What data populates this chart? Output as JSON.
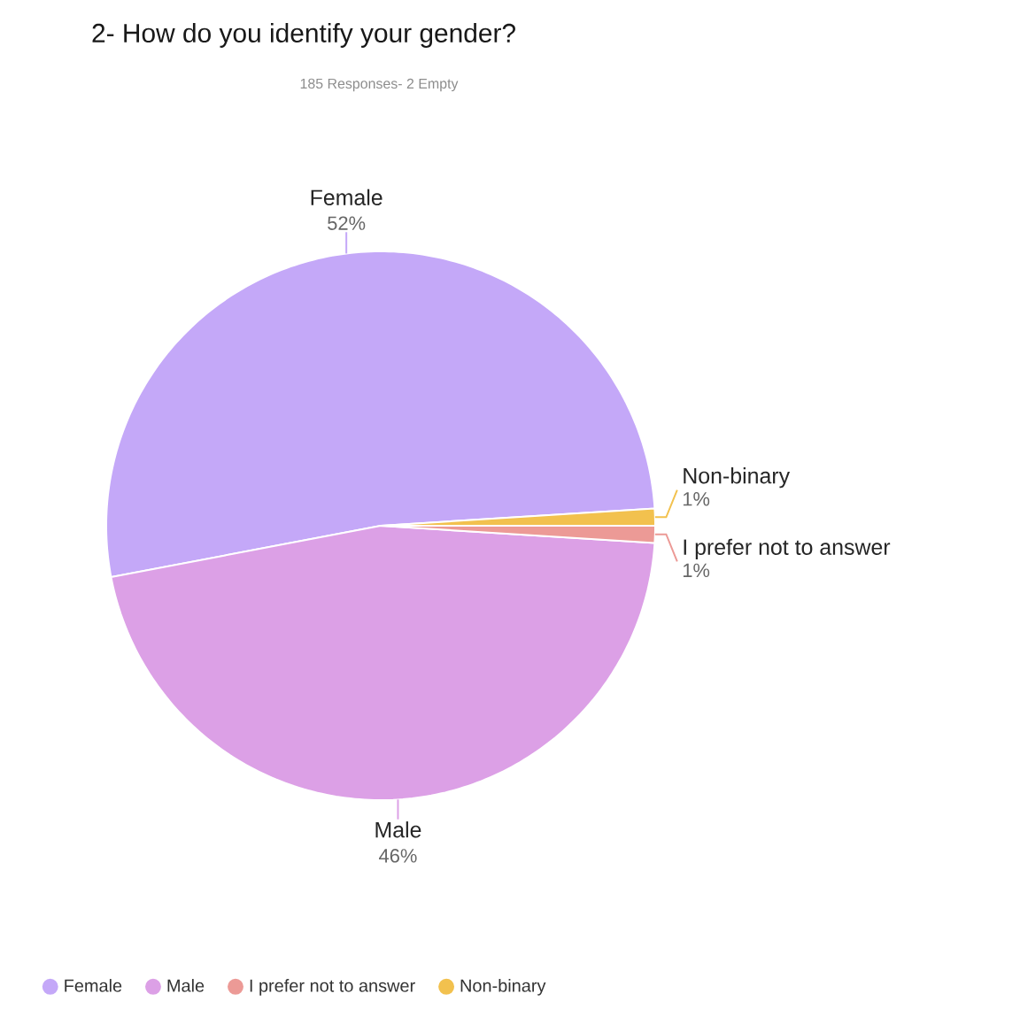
{
  "chart_data": {
    "type": "pie",
    "title": "2- How do you identify your gender?",
    "subtitle": "185 Responses- 2 Empty",
    "categories": [
      "Female",
      "Male",
      "I prefer not to answer",
      "Non-binary"
    ],
    "values": [
      52,
      46,
      1,
      1
    ],
    "colors": [
      "#c4a8f8",
      "#dca0e6",
      "#ec9a96",
      "#f2c14e"
    ],
    "value_labels": [
      "52%",
      "46%",
      "1%",
      "1%"
    ],
    "legend": "bottom"
  }
}
